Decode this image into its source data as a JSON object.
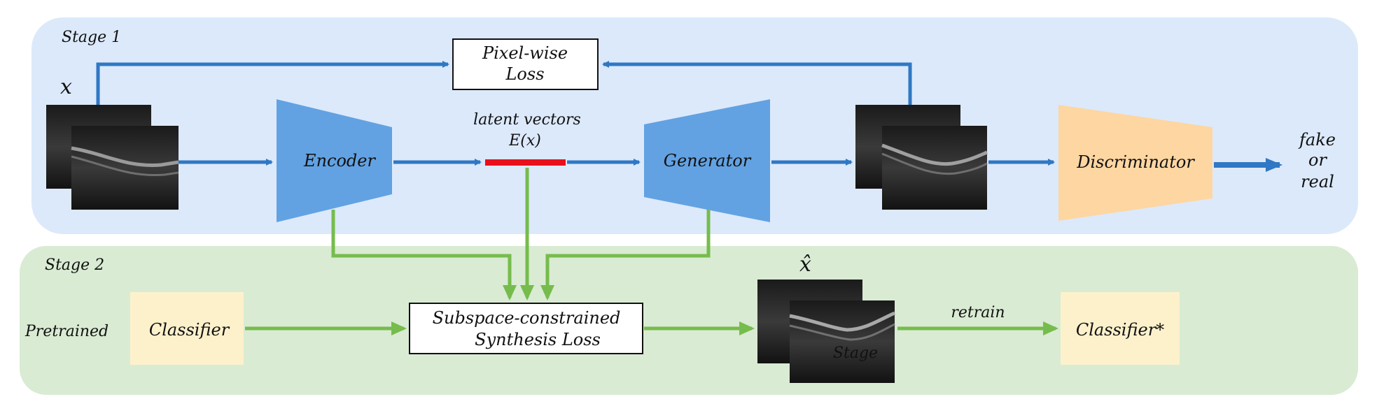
{
  "stage1": {
    "label": "Stage 1"
  },
  "stage2": {
    "label": "Stage 2"
  },
  "input_symbol": "x",
  "output_symbol": "x̂",
  "pixel_loss": {
    "line1": "Pixel-wise",
    "line2": "Loss"
  },
  "encoder": "Encoder",
  "generator": "Generator",
  "discriminator": "Discriminator",
  "latent": {
    "line1": "latent vectors",
    "line2": "E(x)"
  },
  "output": {
    "line1": "fake",
    "line2": "or",
    "line3": "real"
  },
  "pretrained_label": "Pretrained",
  "classifier": "Classifier",
  "classifier_star": "Classifier*",
  "synthesis_loss": {
    "line1": "Subspace-constrained",
    "line2": "Synthesis Loss"
  },
  "retrain_label": "retrain",
  "image_caption": "Stage",
  "colors": {
    "stage1_bg": "#dce9fb",
    "stage2_bg": "#d9ebd3",
    "encoder_fill": "#62a2e2",
    "discriminator_fill": "#fdd6a2",
    "classifier_fill": "#fdf1cc",
    "blue_arrow": "#2f78c4",
    "green_arrow": "#76bc4c",
    "latent_bar": "#e8101a"
  }
}
